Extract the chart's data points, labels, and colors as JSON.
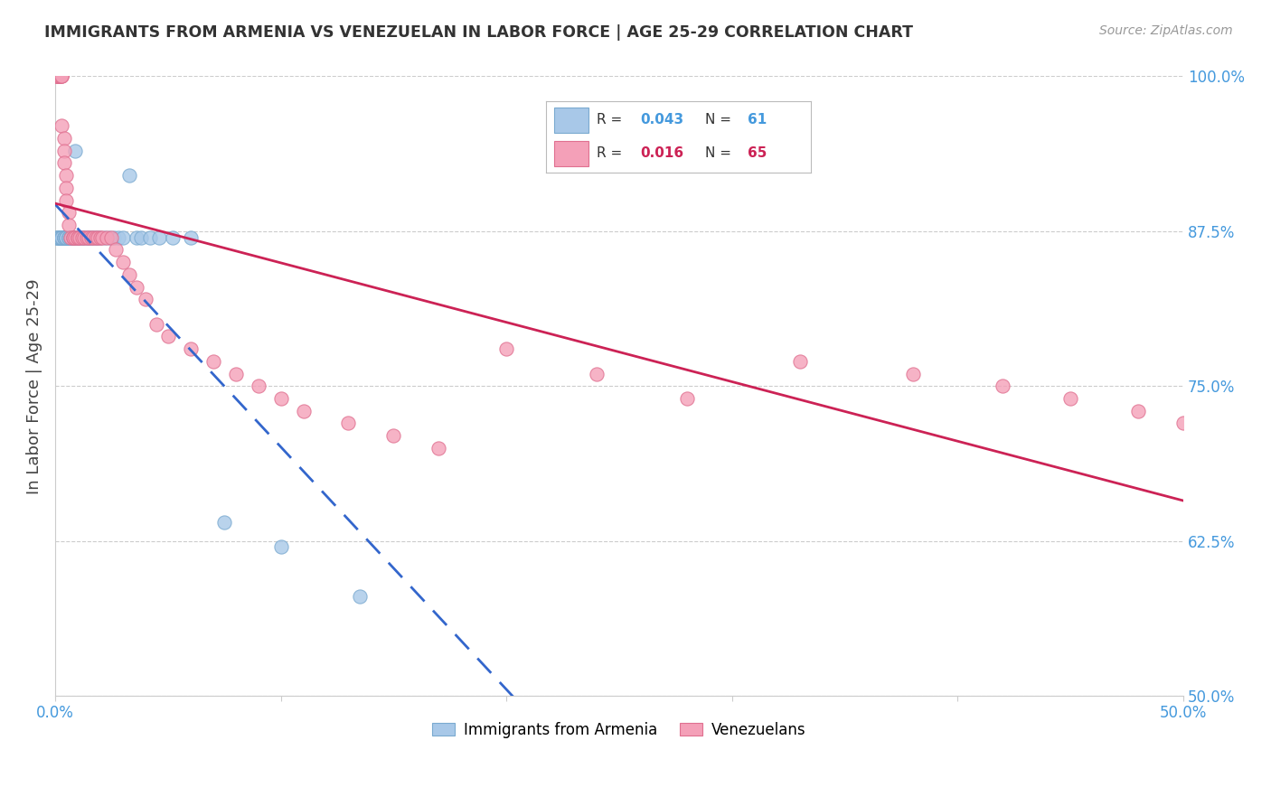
{
  "title": "IMMIGRANTS FROM ARMENIA VS VENEZUELAN IN LABOR FORCE | AGE 25-29 CORRELATION CHART",
  "source": "Source: ZipAtlas.com",
  "ylabel": "In Labor Force | Age 25-29",
  "xlim": [
    0.0,
    0.5
  ],
  "ylim": [
    0.5,
    1.0
  ],
  "ytick_labels_right": [
    "100.0%",
    "87.5%",
    "75.0%",
    "62.5%",
    "50.0%"
  ],
  "yticks_right": [
    1.0,
    0.875,
    0.75,
    0.625,
    0.5
  ],
  "armenia_color": "#a8c8e8",
  "venezuela_color": "#f4a0b8",
  "armenia_edge_color": "#7aaad0",
  "venezuela_edge_color": "#e07090",
  "armenia_line_color": "#3366cc",
  "venezuela_line_color": "#cc2255",
  "grid_color": "#cccccc",
  "title_color": "#333333",
  "right_tick_color": "#4499dd",
  "arm_x": [
    0.001,
    0.001,
    0.001,
    0.002,
    0.002,
    0.002,
    0.002,
    0.002,
    0.003,
    0.003,
    0.003,
    0.003,
    0.003,
    0.004,
    0.004,
    0.004,
    0.004,
    0.005,
    0.005,
    0.005,
    0.005,
    0.006,
    0.006,
    0.006,
    0.007,
    0.007,
    0.008,
    0.008,
    0.008,
    0.009,
    0.009,
    0.01,
    0.01,
    0.01,
    0.011,
    0.012,
    0.012,
    0.013,
    0.014,
    0.015,
    0.015,
    0.016,
    0.017,
    0.018,
    0.019,
    0.02,
    0.022,
    0.024,
    0.026,
    0.028,
    0.03,
    0.033,
    0.036,
    0.038,
    0.042,
    0.046,
    0.052,
    0.06,
    0.075,
    0.1,
    0.135
  ],
  "arm_y": [
    0.87,
    0.87,
    0.87,
    1.0,
    0.87,
    0.87,
    0.87,
    0.87,
    0.87,
    0.87,
    0.87,
    0.87,
    0.87,
    0.87,
    0.87,
    0.87,
    0.87,
    0.87,
    0.87,
    0.87,
    0.87,
    0.87,
    0.87,
    0.87,
    0.87,
    0.87,
    0.87,
    0.87,
    0.87,
    0.87,
    0.94,
    0.87,
    0.87,
    0.87,
    0.87,
    0.87,
    0.87,
    0.87,
    0.87,
    0.87,
    0.87,
    0.87,
    0.87,
    0.87,
    0.87,
    0.87,
    0.87,
    0.87,
    0.87,
    0.87,
    0.87,
    0.92,
    0.87,
    0.87,
    0.87,
    0.87,
    0.87,
    0.87,
    0.64,
    0.62,
    0.58
  ],
  "ven_x": [
    0.001,
    0.001,
    0.001,
    0.001,
    0.001,
    0.002,
    0.002,
    0.002,
    0.002,
    0.003,
    0.003,
    0.003,
    0.003,
    0.004,
    0.004,
    0.004,
    0.005,
    0.005,
    0.005,
    0.006,
    0.006,
    0.007,
    0.008,
    0.008,
    0.009,
    0.01,
    0.01,
    0.011,
    0.012,
    0.013,
    0.014,
    0.015,
    0.016,
    0.017,
    0.018,
    0.019,
    0.02,
    0.021,
    0.023,
    0.025,
    0.027,
    0.03,
    0.033,
    0.036,
    0.04,
    0.045,
    0.05,
    0.06,
    0.07,
    0.08,
    0.09,
    0.1,
    0.11,
    0.13,
    0.15,
    0.17,
    0.2,
    0.24,
    0.28,
    0.33,
    0.38,
    0.42,
    0.45,
    0.48,
    0.5
  ],
  "ven_y": [
    1.0,
    1.0,
    1.0,
    1.0,
    1.0,
    1.0,
    1.0,
    1.0,
    1.0,
    1.0,
    1.0,
    1.0,
    0.96,
    0.95,
    0.94,
    0.93,
    0.92,
    0.91,
    0.9,
    0.89,
    0.88,
    0.87,
    0.87,
    0.87,
    0.87,
    0.87,
    0.87,
    0.87,
    0.87,
    0.87,
    0.87,
    0.87,
    0.87,
    0.87,
    0.87,
    0.87,
    0.87,
    0.87,
    0.87,
    0.87,
    0.86,
    0.85,
    0.84,
    0.83,
    0.82,
    0.8,
    0.79,
    0.78,
    0.77,
    0.76,
    0.75,
    0.74,
    0.73,
    0.72,
    0.71,
    0.7,
    0.78,
    0.76,
    0.74,
    0.77,
    0.76,
    0.75,
    0.74,
    0.73,
    0.72
  ]
}
